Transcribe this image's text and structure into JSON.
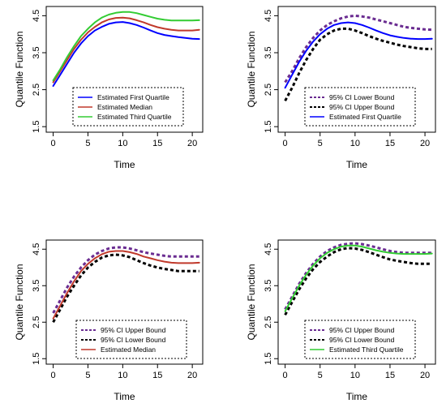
{
  "chart_data": [
    {
      "type": "line",
      "xlabel": "Time",
      "ylabel": "Quantile Function",
      "xlim": [
        -1,
        21.5
      ],
      "ylim": [
        1.35,
        4.75
      ],
      "xticks": [
        0,
        5,
        10,
        15,
        20
      ],
      "yticks": [
        1.5,
        2.5,
        3.5,
        4.5
      ],
      "legend_position": "bottom",
      "x": [
        0,
        1,
        2,
        3,
        4,
        5,
        6,
        7,
        8,
        9,
        10,
        11,
        12,
        13,
        14,
        15,
        16,
        17,
        18,
        19,
        20,
        21
      ],
      "series": [
        {
          "name": "Estimated First Quartile",
          "color": "#0000ff",
          "dash": "solid",
          "values": [
            2.6,
            2.9,
            3.2,
            3.5,
            3.75,
            3.95,
            4.1,
            4.2,
            4.28,
            4.32,
            4.33,
            4.3,
            4.25,
            4.18,
            4.1,
            4.03,
            3.98,
            3.95,
            3.92,
            3.9,
            3.88,
            3.87
          ]
        },
        {
          "name": "Estimated Median",
          "color": "#c0392b",
          "dash": "solid",
          "values": [
            2.7,
            3.0,
            3.3,
            3.6,
            3.85,
            4.05,
            4.2,
            4.32,
            4.4,
            4.44,
            4.45,
            4.43,
            4.38,
            4.32,
            4.25,
            4.19,
            4.15,
            4.12,
            4.1,
            4.1,
            4.1,
            4.12
          ]
        },
        {
          "name": "Estimated Third Quartile",
          "color": "#33cc33",
          "dash": "solid",
          "values": [
            2.75,
            3.05,
            3.38,
            3.68,
            3.95,
            4.15,
            4.32,
            4.45,
            4.53,
            4.58,
            4.6,
            4.6,
            4.57,
            4.52,
            4.47,
            4.42,
            4.39,
            4.37,
            4.37,
            4.37,
            4.37,
            4.38
          ]
        }
      ]
    },
    {
      "type": "line",
      "xlabel": "Time",
      "ylabel": "Quantile Function",
      "xlim": [
        -1,
        21.5
      ],
      "ylim": [
        1.35,
        4.75
      ],
      "xticks": [
        0,
        5,
        10,
        15,
        20
      ],
      "yticks": [
        1.5,
        2.5,
        3.5,
        4.5
      ],
      "legend_position": "bottom",
      "x": [
        0,
        1,
        2,
        3,
        4,
        5,
        6,
        7,
        8,
        9,
        10,
        11,
        12,
        13,
        14,
        15,
        16,
        17,
        18,
        19,
        20,
        21
      ],
      "series": [
        {
          "name": "95% CI Lower Bound",
          "color": "#6a2c91",
          "dash": "dotted",
          "values": [
            2.7,
            3.0,
            3.35,
            3.65,
            3.9,
            4.1,
            4.25,
            4.35,
            4.43,
            4.48,
            4.5,
            4.48,
            4.45,
            4.4,
            4.35,
            4.3,
            4.25,
            4.2,
            4.17,
            4.15,
            4.13,
            4.12
          ]
        },
        {
          "name": "95% CI Upper Bound",
          "color": "#000000",
          "dash": "dotted",
          "values": [
            2.2,
            2.55,
            2.95,
            3.3,
            3.6,
            3.85,
            4.0,
            4.1,
            4.15,
            4.15,
            4.1,
            4.03,
            3.95,
            3.88,
            3.82,
            3.77,
            3.72,
            3.68,
            3.65,
            3.62,
            3.6,
            3.6
          ]
        },
        {
          "name": "Estimated First Quartile",
          "color": "#0000ff",
          "dash": "solid",
          "values": [
            2.55,
            2.9,
            3.25,
            3.55,
            3.8,
            4.0,
            4.15,
            4.25,
            4.3,
            4.32,
            4.3,
            4.25,
            4.18,
            4.1,
            4.03,
            3.97,
            3.93,
            3.9,
            3.88,
            3.87,
            3.87,
            3.88
          ]
        }
      ]
    },
    {
      "type": "line",
      "xlabel": "Time",
      "ylabel": "Quantile Function",
      "xlim": [
        -1,
        21.5
      ],
      "ylim": [
        1.35,
        4.75
      ],
      "xticks": [
        0,
        5,
        10,
        15,
        20
      ],
      "yticks": [
        1.5,
        2.5,
        3.5,
        4.5
      ],
      "legend_position": "bottom",
      "x": [
        0,
        1,
        2,
        3,
        4,
        5,
        6,
        7,
        8,
        9,
        10,
        11,
        12,
        13,
        14,
        15,
        16,
        17,
        18,
        19,
        20,
        21
      ],
      "series": [
        {
          "name": "95% CI Upper Bound",
          "color": "#6a2c91",
          "dash": "dotted",
          "values": [
            2.75,
            3.1,
            3.45,
            3.75,
            4.0,
            4.2,
            4.35,
            4.45,
            4.52,
            4.55,
            4.55,
            4.52,
            4.47,
            4.42,
            4.38,
            4.35,
            4.32,
            4.3,
            4.3,
            4.3,
            4.3,
            4.3
          ]
        },
        {
          "name": "95% CI Lower Bound",
          "color": "#000000",
          "dash": "dotted",
          "values": [
            2.5,
            2.85,
            3.2,
            3.5,
            3.78,
            4.0,
            4.15,
            4.27,
            4.33,
            4.35,
            4.33,
            4.28,
            4.2,
            4.12,
            4.05,
            4.0,
            3.96,
            3.93,
            3.9,
            3.9,
            3.9,
            3.9
          ]
        },
        {
          "name": "Estimated Median",
          "color": "#c0392b",
          "dash": "solid",
          "values": [
            2.6,
            2.95,
            3.3,
            3.62,
            3.9,
            4.1,
            4.25,
            4.36,
            4.43,
            4.45,
            4.45,
            4.42,
            4.37,
            4.3,
            4.25,
            4.2,
            4.16,
            4.13,
            4.12,
            4.12,
            4.12,
            4.13
          ]
        }
      ]
    },
    {
      "type": "line",
      "xlabel": "Time",
      "ylabel": "Quantile Function",
      "xlim": [
        -1,
        21.5
      ],
      "ylim": [
        1.35,
        4.75
      ],
      "xticks": [
        0,
        5,
        10,
        15,
        20
      ],
      "yticks": [
        1.5,
        2.5,
        3.5,
        4.5
      ],
      "legend_position": "bottom",
      "x": [
        0,
        1,
        2,
        3,
        4,
        5,
        6,
        7,
        8,
        9,
        10,
        11,
        12,
        13,
        14,
        15,
        16,
        17,
        18,
        19,
        20,
        21
      ],
      "series": [
        {
          "name": "95% CI Upper Bound",
          "color": "#6a2c91",
          "dash": "dotted",
          "values": [
            2.85,
            3.2,
            3.55,
            3.85,
            4.1,
            4.3,
            4.45,
            4.55,
            4.62,
            4.65,
            4.66,
            4.64,
            4.6,
            4.55,
            4.5,
            4.45,
            4.42,
            4.4,
            4.4,
            4.4,
            4.4,
            4.4
          ]
        },
        {
          "name": "95% CI Lower Bound",
          "color": "#000000",
          "dash": "dotted",
          "values": [
            2.7,
            3.05,
            3.4,
            3.7,
            3.95,
            4.15,
            4.3,
            4.42,
            4.5,
            4.53,
            4.52,
            4.48,
            4.42,
            4.35,
            4.28,
            4.22,
            4.18,
            4.15,
            4.12,
            4.1,
            4.1,
            4.1
          ]
        },
        {
          "name": "Estimated Third Quartile",
          "color": "#33cc33",
          "dash": "solid",
          "values": [
            2.8,
            3.15,
            3.5,
            3.8,
            4.05,
            4.25,
            4.4,
            4.5,
            4.57,
            4.6,
            4.6,
            4.57,
            4.52,
            4.47,
            4.43,
            4.4,
            4.38,
            4.37,
            4.37,
            4.37,
            4.37,
            4.38
          ]
        }
      ]
    }
  ]
}
